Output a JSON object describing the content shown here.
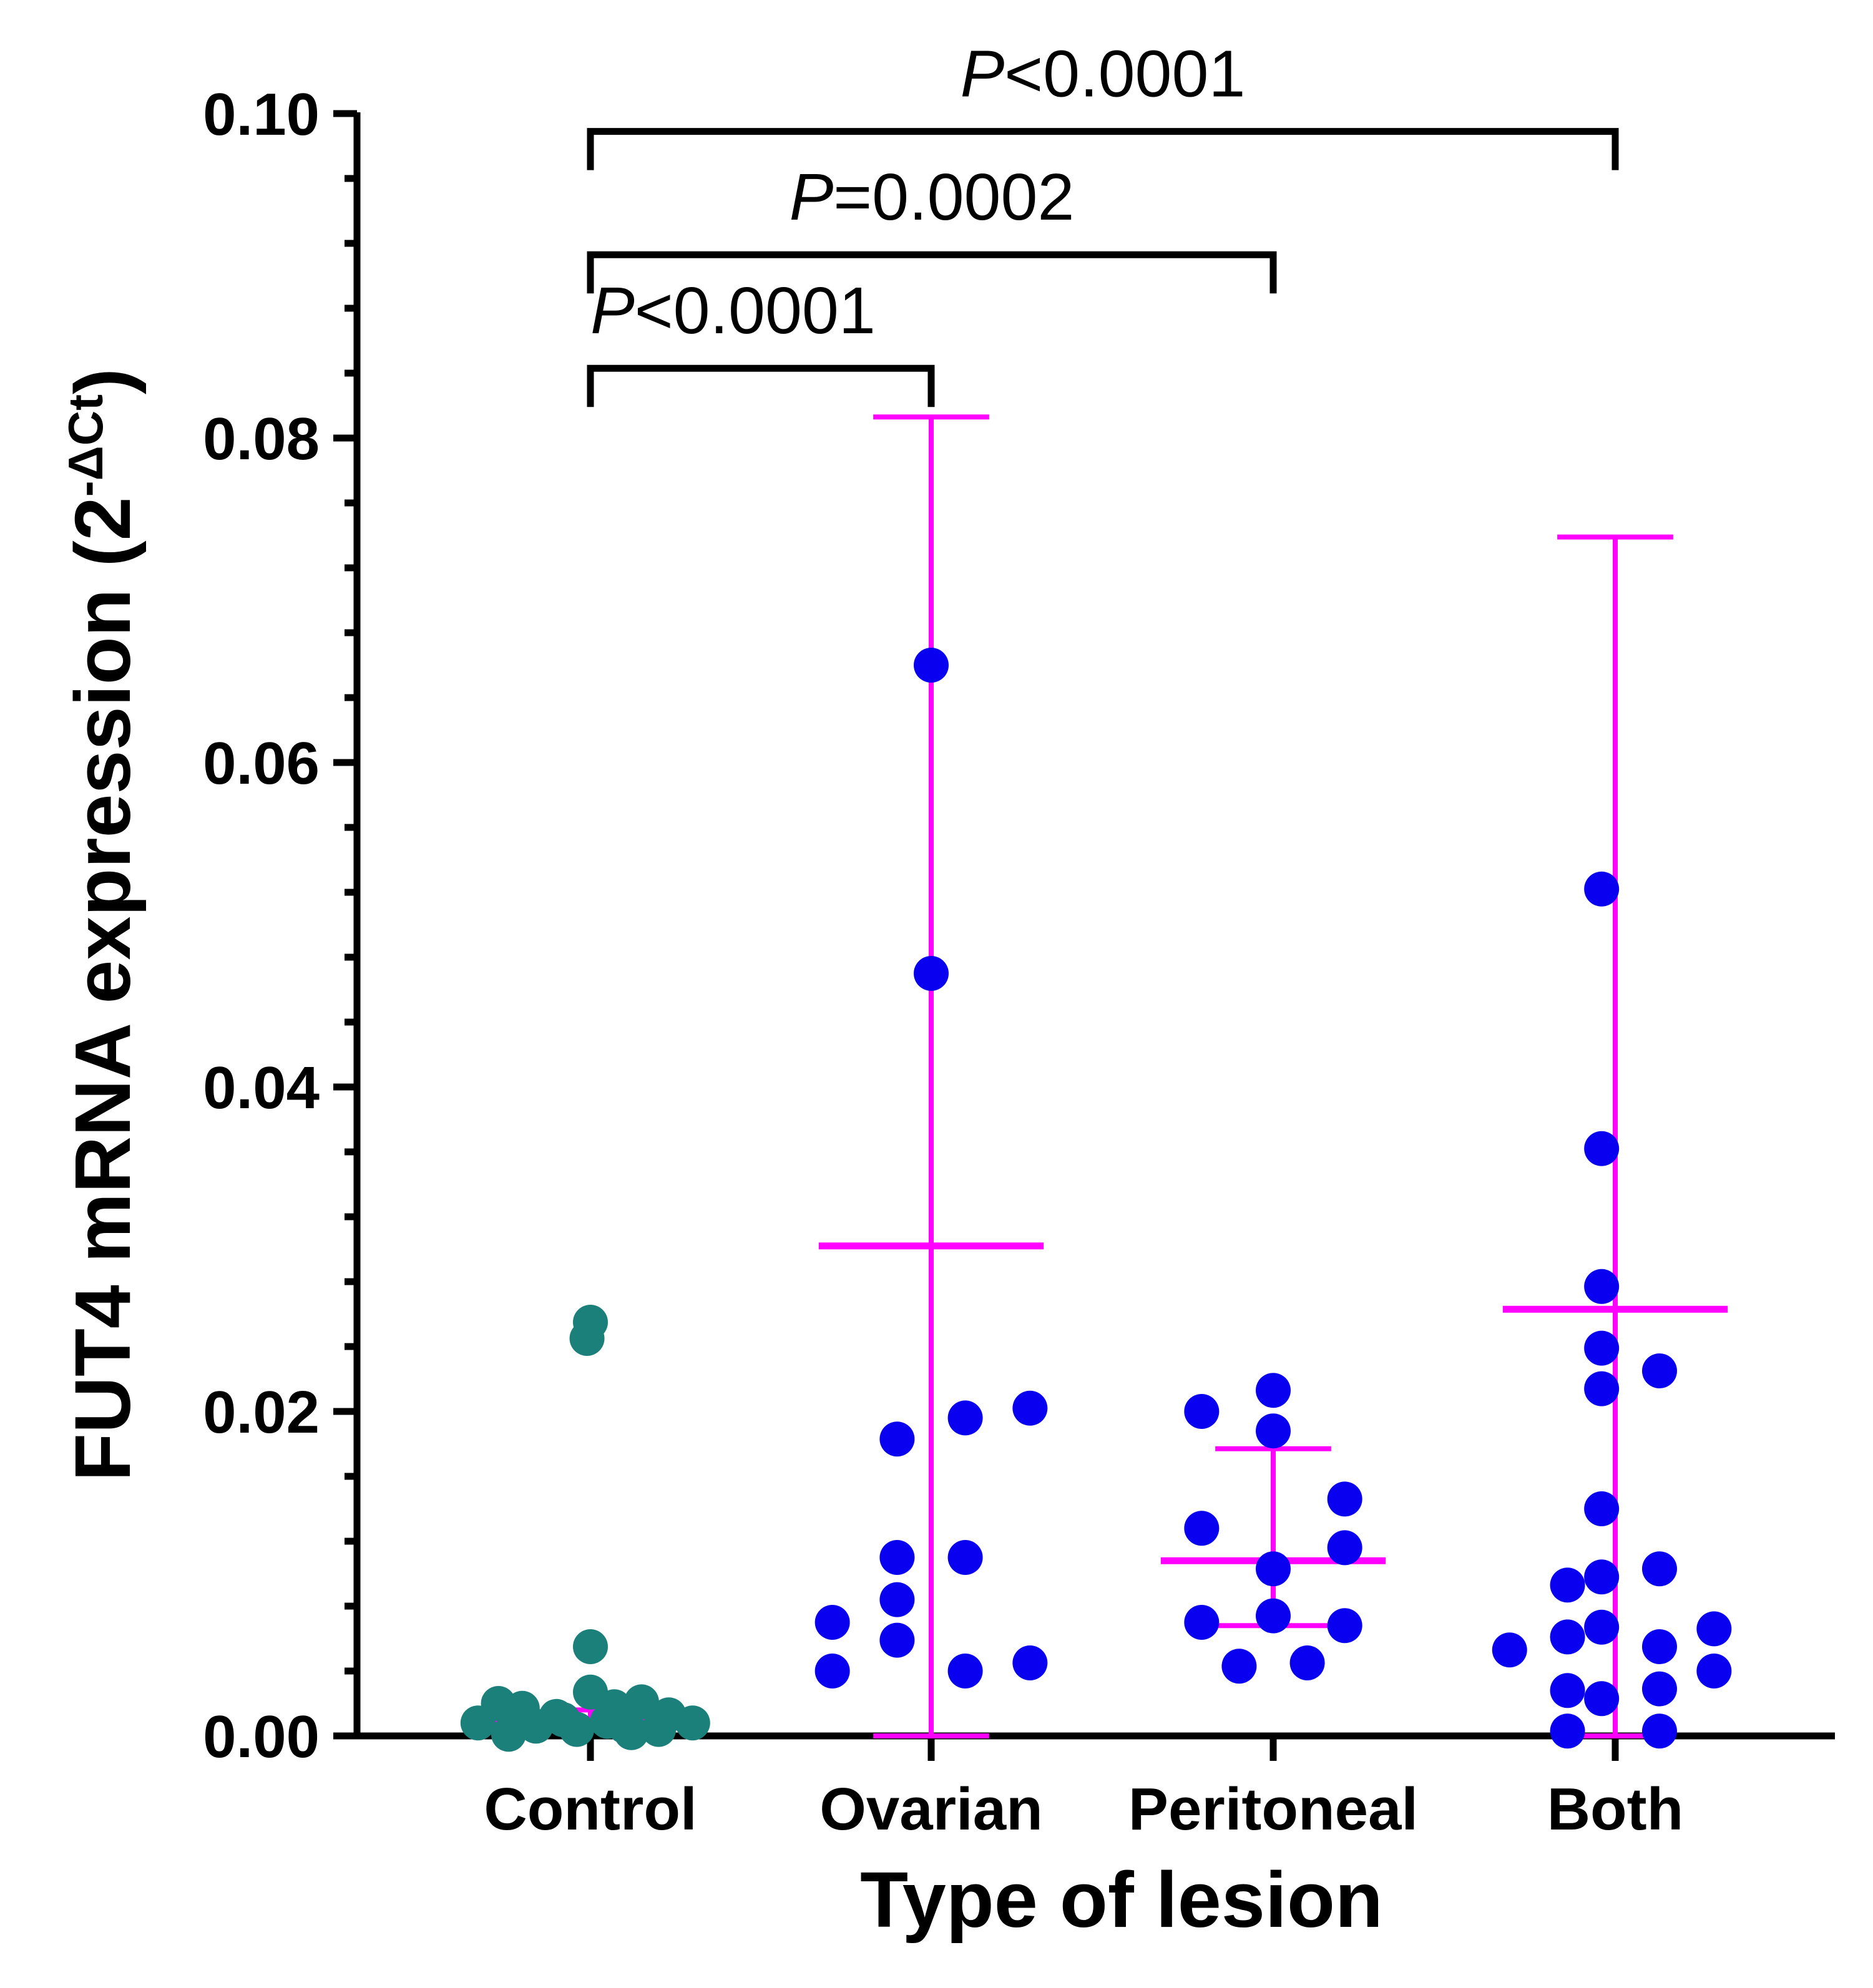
{
  "chart_data": {
    "type": "scatter",
    "xlabel": "Type of lesion",
    "ylabel": "FUT4 mRNA expression",
    "ylabel_unit_base": "(2",
    "ylabel_unit_sup": "-ΔCt",
    "ylabel_unit_close": ")",
    "ylim": [
      0,
      0.1
    ],
    "yticks": [
      "0.00",
      "0.02",
      "0.04",
      "0.06",
      "0.08",
      "0.10"
    ],
    "categories": [
      "Control",
      "Ovarian",
      "Peritoneal",
      "Both"
    ],
    "colors": {
      "control": "#1b7f7a",
      "lesion": "#0a00f0",
      "summary": "#ff00ff",
      "axis": "#000000"
    },
    "groups": [
      {
        "category": "Control",
        "color": "control",
        "points": [
          {
            "dx": 0.0,
            "y": 0.0255
          },
          {
            "dx": -0.01,
            "y": 0.0245
          },
          {
            "dx": 0.0,
            "y": 0.0055
          },
          {
            "dx": 0.0,
            "y": 0.0027
          },
          {
            "dx": -0.27,
            "y": 0.002
          },
          {
            "dx": 0.15,
            "y": 0.0021
          },
          {
            "dx": -0.2,
            "y": 0.0017
          },
          {
            "dx": 0.07,
            "y": 0.0018
          },
          {
            "dx": -0.1,
            "y": 0.0012
          },
          {
            "dx": 0.23,
            "y": 0.0013
          },
          {
            "dx": -0.33,
            "y": 0.0008
          },
          {
            "dx": 0.3,
            "y": 0.0008
          },
          {
            "dx": -0.16,
            "y": 0.0006
          },
          {
            "dx": 0.1,
            "y": 0.0006
          },
          {
            "dx": -0.04,
            "y": 0.0004
          },
          {
            "dx": 0.2,
            "y": 0.0004
          },
          {
            "dx": -0.24,
            "y": 0.0001
          },
          {
            "dx": 0.12,
            "y": 0.0002
          },
          {
            "dx": 0.05,
            "y": 0.0009
          },
          {
            "dx": -0.08,
            "y": 0.001
          }
        ],
        "summary": {
          "center": 0.001,
          "upper": 0.0016,
          "lower": 0.0006,
          "bar_half_width": 0.32,
          "cap_half_width": 0.1
        }
      },
      {
        "category": "Ovarian",
        "color": "lesion",
        "points": [
          {
            "dx": 0.0,
            "y": 0.066
          },
          {
            "dx": 0.0,
            "y": 0.047
          },
          {
            "dx": 0.29,
            "y": 0.0202
          },
          {
            "dx": 0.1,
            "y": 0.0196
          },
          {
            "dx": -0.1,
            "y": 0.0183
          },
          {
            "dx": -0.1,
            "y": 0.011
          },
          {
            "dx": 0.1,
            "y": 0.011
          },
          {
            "dx": -0.1,
            "y": 0.0084
          },
          {
            "dx": -0.29,
            "y": 0.007
          },
          {
            "dx": -0.1,
            "y": 0.0059
          },
          {
            "dx": 0.29,
            "y": 0.0045
          },
          {
            "dx": -0.29,
            "y": 0.004
          },
          {
            "dx": 0.1,
            "y": 0.004
          }
        ],
        "summary": {
          "center": 0.0302,
          "upper": 0.0813,
          "lower": 0.0,
          "bar_half_width": 0.33,
          "cap_half_width": 0.17
        }
      },
      {
        "category": "Peritoneal",
        "color": "lesion",
        "points": [
          {
            "dx": 0.0,
            "y": 0.0213
          },
          {
            "dx": -0.21,
            "y": 0.02
          },
          {
            "dx": 0.0,
            "y": 0.0188
          },
          {
            "dx": 0.21,
            "y": 0.0146
          },
          {
            "dx": -0.21,
            "y": 0.0128
          },
          {
            "dx": 0.21,
            "y": 0.0116
          },
          {
            "dx": 0.0,
            "y": 0.0103
          },
          {
            "dx": 0.0,
            "y": 0.0074
          },
          {
            "dx": -0.21,
            "y": 0.007
          },
          {
            "dx": 0.21,
            "y": 0.0068
          },
          {
            "dx": -0.1,
            "y": 0.0043
          },
          {
            "dx": 0.1,
            "y": 0.0045
          }
        ],
        "summary": {
          "center": 0.0108,
          "upper": 0.0177,
          "lower": 0.0068,
          "bar_half_width": 0.33,
          "cap_half_width": 0.17
        }
      },
      {
        "category": "Both",
        "color": "lesion",
        "points": [
          {
            "dx": -0.04,
            "y": 0.0522
          },
          {
            "dx": -0.04,
            "y": 0.0362
          },
          {
            "dx": -0.04,
            "y": 0.0277
          },
          {
            "dx": -0.04,
            "y": 0.0239
          },
          {
            "dx": 0.13,
            "y": 0.0225
          },
          {
            "dx": -0.04,
            "y": 0.0214
          },
          {
            "dx": -0.04,
            "y": 0.014
          },
          {
            "dx": 0.13,
            "y": 0.0103
          },
          {
            "dx": -0.04,
            "y": 0.0098
          },
          {
            "dx": -0.14,
            "y": 0.0093
          },
          {
            "dx": -0.04,
            "y": 0.0067
          },
          {
            "dx": 0.29,
            "y": 0.0066
          },
          {
            "dx": -0.14,
            "y": 0.0061
          },
          {
            "dx": 0.13,
            "y": 0.0055
          },
          {
            "dx": -0.31,
            "y": 0.0053
          },
          {
            "dx": 0.29,
            "y": 0.004
          },
          {
            "dx": -0.14,
            "y": 0.0028
          },
          {
            "dx": 0.13,
            "y": 0.0029
          },
          {
            "dx": -0.04,
            "y": 0.0023
          },
          {
            "dx": -0.14,
            "y": 0.0003
          },
          {
            "dx": 0.13,
            "y": 0.0003
          }
        ],
        "summary": {
          "center": 0.0263,
          "upper": 0.0739,
          "lower": 0.0,
          "bar_half_width": 0.33,
          "cap_half_width": 0.17
        }
      }
    ],
    "comparisons": [
      {
        "from": "Control",
        "to": "Ovarian",
        "level": 0.0843,
        "label_italic": "P",
        "label_rest": "<0.0001"
      },
      {
        "from": "Control",
        "to": "Peritoneal",
        "level": 0.0913,
        "label_italic": "P",
        "label_rest": "=0.0002"
      },
      {
        "from": "Control",
        "to": "Both",
        "level": 0.0989,
        "label_italic": "P",
        "label_rest": "<0.0001"
      }
    ]
  }
}
